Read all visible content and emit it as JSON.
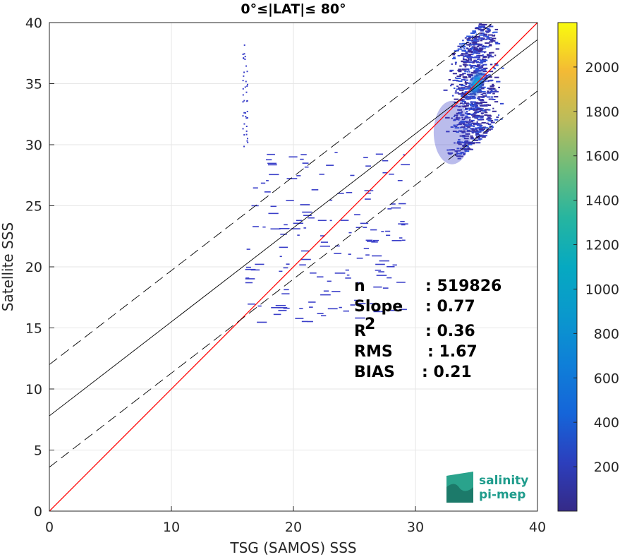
{
  "chart_data": {
    "type": "heatmap",
    "title": "0°≤|LAT|≤ 80°",
    "xlabel": "TSG (SAMOS) SSS",
    "ylabel": "Satellite SSS",
    "xlim": [
      0,
      40
    ],
    "ylim": [
      0,
      40
    ],
    "xticks": [
      "0",
      "10",
      "20",
      "30",
      "40"
    ],
    "yticks": [
      "0",
      "5",
      "10",
      "15",
      "20",
      "25",
      "30",
      "35",
      "40"
    ],
    "grid": true,
    "colorbar": {
      "range": [
        0,
        2200
      ],
      "ticks": [
        "200",
        "400",
        "600",
        "800",
        "1000",
        "1200",
        "1400",
        "1600",
        "1800",
        "2000"
      ],
      "colormap": "parula"
    },
    "reference_lines": [
      {
        "name": "1:1",
        "intercept": 0,
        "slope": 1,
        "color": "#ff0000",
        "style": "solid"
      },
      {
        "name": "fit",
        "intercept": 7.8,
        "slope": 0.77,
        "color": "#000000",
        "style": "solid"
      },
      {
        "name": "fit+",
        "intercept": 12.0,
        "slope": 0.77,
        "color": "#000000",
        "style": "dashed"
      },
      {
        "name": "fit-",
        "intercept": 3.6,
        "slope": 0.77,
        "color": "#000000",
        "style": "dashed"
      }
    ],
    "density_peak": {
      "x": 35,
      "y": 35
    },
    "stats": [
      {
        "label": "n",
        "value": ": 519826"
      },
      {
        "label": "Slope",
        "value": ": 0.77"
      },
      {
        "label": "R",
        "sup": "2",
        "value": ": 0.36"
      },
      {
        "label": "RMS",
        "value": ": 1.67"
      },
      {
        "label": "BIAS",
        "value": ": 0.21"
      }
    ]
  },
  "logo": {
    "line1": "salinity",
    "line2": "pi-mep"
  }
}
